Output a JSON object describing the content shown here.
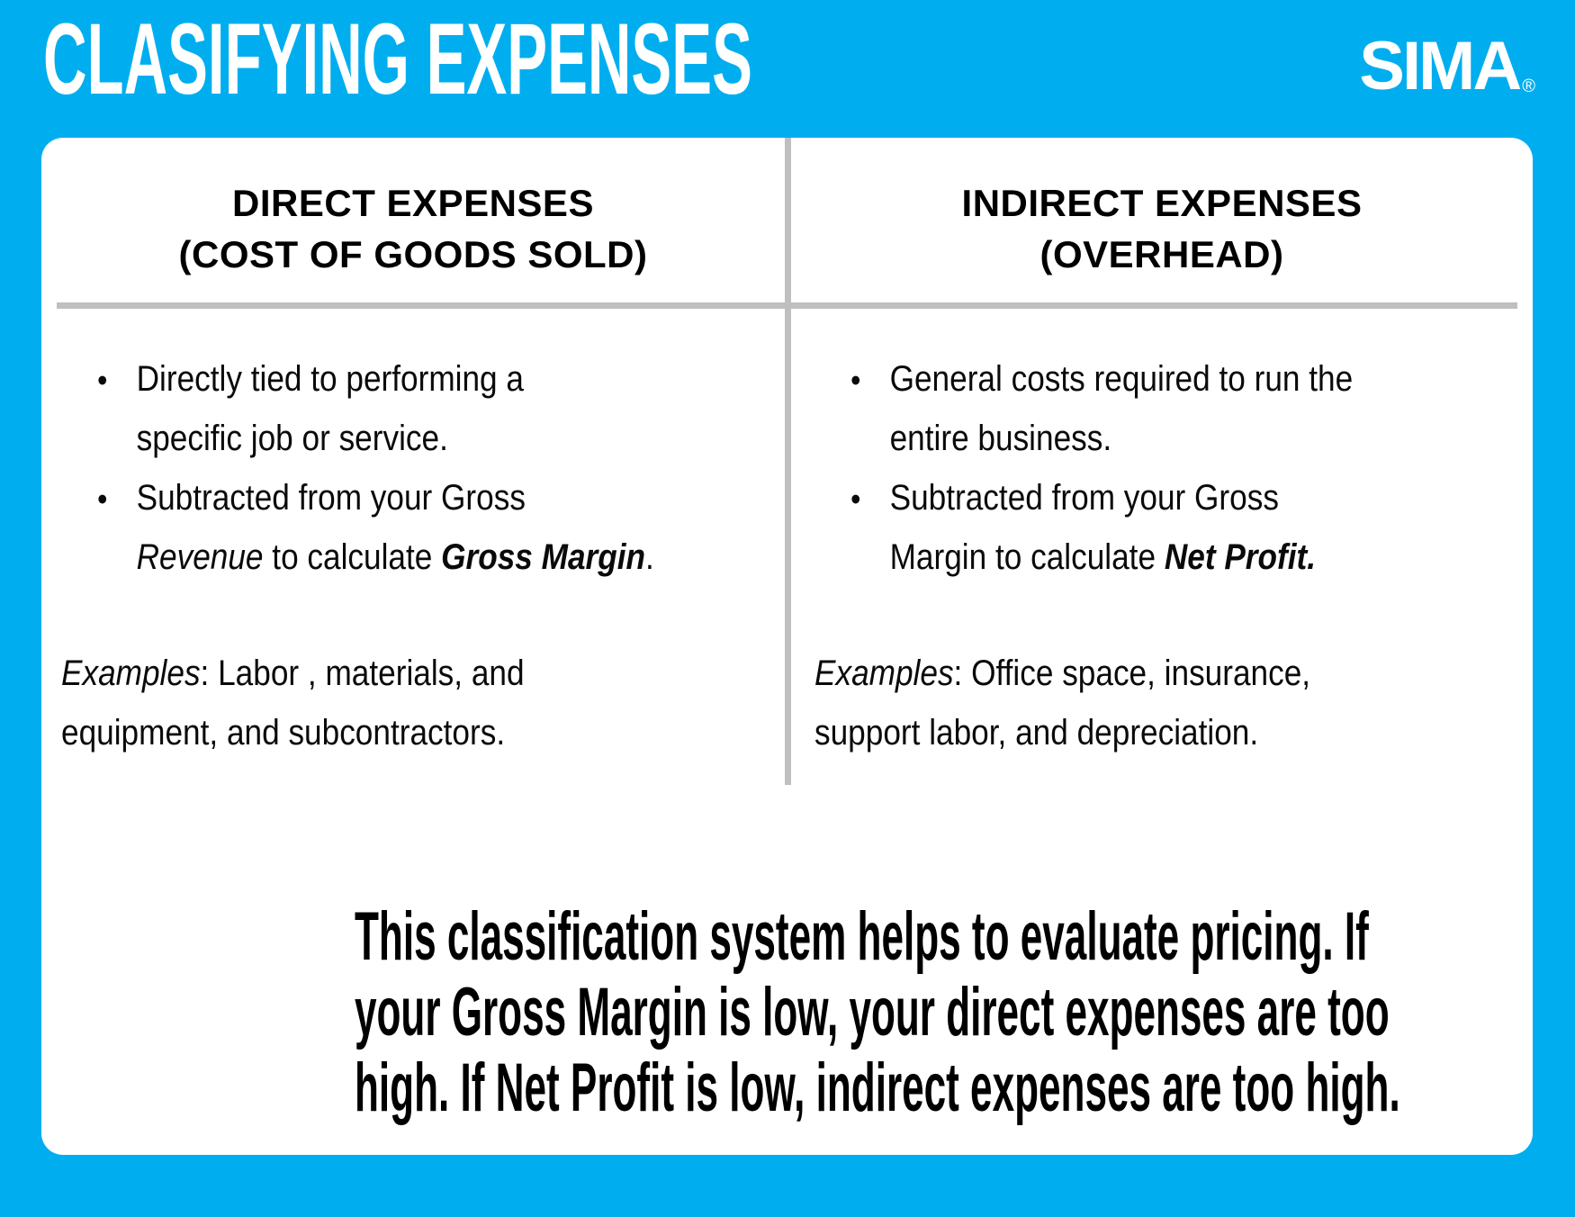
{
  "page": {
    "title": "CLASIFYING EXPENSES",
    "brand": {
      "name": "SIMA",
      "registered_mark": "®"
    }
  },
  "colors": {
    "background_blue": "#00AEEF",
    "card_white": "#FFFFFF",
    "divider_gray": "#BFBFBF",
    "text_black": "#0A0A0A"
  },
  "columns": {
    "left": {
      "header_line1": "DIRECT EXPENSES",
      "header_line2": "(COST OF GOODS SOLD)",
      "bullets": [
        [
          {
            "t": "Directly tied to performing a",
            "s": "n"
          },
          {
            "br": true
          },
          {
            "t": "specific job or service.",
            "s": "n"
          }
        ],
        [
          {
            "t": "Subtracted from your Gross",
            "s": "n"
          },
          {
            "br": true
          },
          {
            "t": "Revenue",
            "s": "i"
          },
          {
            "t": " to calculate ",
            "s": "n"
          },
          {
            "t": "Gross Margin",
            "s": "bi"
          },
          {
            "t": ".",
            "s": "n"
          }
        ]
      ],
      "examples": [
        {
          "t": "Examples",
          "s": "i"
        },
        {
          "t": ": Labor , materials, and",
          "s": "n"
        },
        {
          "br": true
        },
        {
          "t": "equipment, and subcontractors.",
          "s": "n"
        }
      ]
    },
    "right": {
      "header_line1": "INDIRECT EXPENSES",
      "header_line2": "(OVERHEAD)",
      "bullets": [
        [
          {
            "t": "General costs required to run the",
            "s": "n"
          },
          {
            "br": true
          },
          {
            "t": "entire business.",
            "s": "n"
          }
        ],
        [
          {
            "t": "Subtracted from your Gross",
            "s": "n"
          },
          {
            "br": true
          },
          {
            "t": "Margin to calculate ",
            "s": "n"
          },
          {
            "t": "Net Profit.",
            "s": "bi"
          }
        ]
      ],
      "examples": [
        {
          "t": "Examples",
          "s": "i"
        },
        {
          "t": ": Office space, insurance,",
          "s": "n"
        },
        {
          "br": true
        },
        {
          "t": "support labor, and depreciation.",
          "s": "n"
        }
      ]
    }
  },
  "summary": {
    "lines": [
      "This classification system helps to evaluate pricing. If",
      "your Gross Margin is low, your direct expenses are too",
      "high. If Net Profit is low, indirect expenses are too high."
    ]
  }
}
